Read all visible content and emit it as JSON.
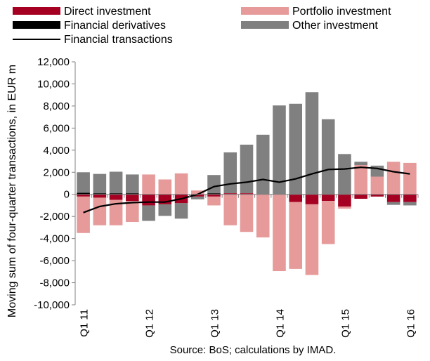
{
  "chart_data": {
    "type": "bar",
    "stacked": true,
    "ylabel": "Moving sum of four-quarter transactions, in EUR m",
    "ylim": [
      -10000,
      12000
    ],
    "y_ticks": [
      -10000,
      -8000,
      -6000,
      -4000,
      -2000,
      0,
      2000,
      4000,
      6000,
      8000,
      10000,
      12000
    ],
    "y_tick_labels": [
      "-10,000",
      "-8,000",
      "-6,000",
      "-4,000",
      "-2,000",
      "0",
      "2,000",
      "4,000",
      "6,000",
      "8,000",
      "10,000",
      "12,000"
    ],
    "categories": [
      "Q1 11",
      "Q2 11",
      "Q3 11",
      "Q4 11",
      "Q1 12",
      "Q2 12",
      "Q3 12",
      "Q4 12",
      "Q1 13",
      "Q2 13",
      "Q3 13",
      "Q4 13",
      "Q1 14",
      "Q2 14",
      "Q3 14",
      "Q4 14",
      "Q1 15",
      "Q2 15",
      "Q3 15",
      "Q4 15",
      "Q1 16"
    ],
    "x_tick_labels": [
      {
        "index": 0,
        "label": "Q1 11"
      },
      {
        "index": 4,
        "label": "Q1 12"
      },
      {
        "index": 8,
        "label": "Q1 13"
      },
      {
        "index": 12,
        "label": "Q1 14"
      },
      {
        "index": 16,
        "label": "Q1 15"
      },
      {
        "index": 20,
        "label": "Q1 16"
      }
    ],
    "series": [
      {
        "name": "Direct investment",
        "kind": "bar",
        "color": "#a50021",
        "values": [
          -200,
          -300,
          -500,
          -600,
          -1000,
          -900,
          -800,
          -200,
          -200,
          100,
          100,
          0,
          0,
          -700,
          -900,
          -600,
          -1100,
          -400,
          -200,
          -700,
          -700
        ]
      },
      {
        "name": "Financial derivatives",
        "kind": "bar",
        "color": "#000000",
        "values": [
          150,
          100,
          100,
          100,
          0,
          0,
          0,
          0,
          100,
          0,
          0,
          0,
          0,
          0,
          0,
          0,
          0,
          0,
          0,
          0,
          0
        ]
      },
      {
        "name": "Portfolio investment",
        "kind": "bar",
        "color": "#e69a9a",
        "values": [
          -3300,
          -2500,
          -2300,
          -1900,
          1800,
          1350,
          1900,
          350,
          -800,
          -2800,
          -3400,
          -3900,
          -6950,
          -6050,
          -6400,
          -3900,
          -200,
          2650,
          1600,
          2950,
          2850
        ]
      },
      {
        "name": "Other investment",
        "kind": "bar",
        "color": "#808080",
        "values": [
          1850,
          1750,
          1950,
          1700,
          -1400,
          -1050,
          -1400,
          -250,
          1650,
          3700,
          4400,
          5400,
          8050,
          8200,
          9250,
          6800,
          3650,
          300,
          1000,
          -250,
          -300
        ]
      },
      {
        "name": "Financial transactions",
        "kind": "line",
        "color": "#000000",
        "values": [
          -1650,
          -1100,
          -850,
          -750,
          -700,
          -700,
          -400,
          0,
          700,
          950,
          1100,
          1350,
          1100,
          1400,
          1850,
          2250,
          2300,
          2450,
          2350,
          2050,
          1850
        ]
      }
    ]
  },
  "source": "Source: BoS; calculations by IMAD."
}
